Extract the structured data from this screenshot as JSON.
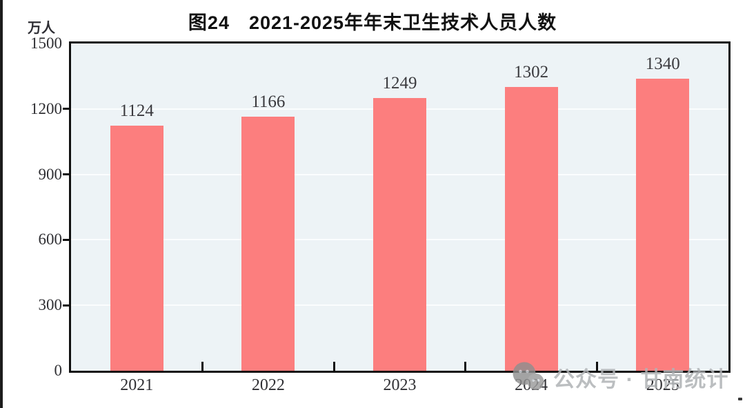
{
  "chart_data": {
    "type": "bar",
    "title": "图24　2021-2025年年末卫生技术人员人数",
    "unit_label": "万人",
    "categories": [
      "2021",
      "2022",
      "2023",
      "2024",
      "2025"
    ],
    "values": [
      1124,
      1166,
      1249,
      1302,
      1340
    ],
    "ylim": [
      0,
      1500
    ],
    "yticks": [
      0,
      300,
      600,
      900,
      1200,
      1500
    ],
    "xlabel": "",
    "ylabel": "万人",
    "legend": "none",
    "grid": true,
    "data_labels": true,
    "colors": {
      "bar": "#fc7e7e",
      "plot_background": "#edf3f6",
      "gridline": "#fbfdfe",
      "axis_frame": "#101010",
      "value_label_text": "#3a3a3e",
      "axis_label_text": "#2f2f33",
      "title_text": "#111111"
    }
  },
  "watermark": {
    "icon": "wechat-icon",
    "text": "公众号 · 甘南统计",
    "color": "#b0b3b6"
  }
}
